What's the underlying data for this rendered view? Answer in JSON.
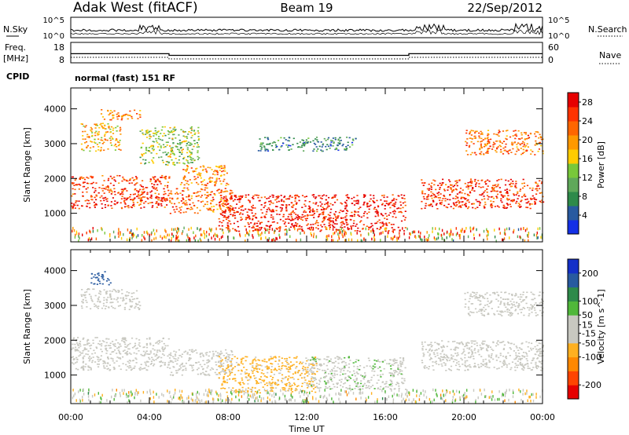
{
  "header": {
    "station": "Adak West (fitACF)",
    "beam": "Beam 19",
    "date": "22/Sep/2012"
  },
  "sky_panel": {
    "left_label": "N.Sky",
    "left_ticks": [
      "10^5",
      "10^0"
    ],
    "right_label": "N.Search",
    "right_ticks": [
      "10^5",
      "10^0"
    ]
  },
  "freq_panel": {
    "left_label_1": "Freq.",
    "left_label_2": "[MHz]",
    "left_ticks": [
      "18",
      "8"
    ],
    "right_label": "Nave",
    "right_ticks": [
      "60",
      "0"
    ]
  },
  "cpid": {
    "label": "CPID",
    "value": "normal (fast) 151 RF"
  },
  "colors": {
    "power_scale": [
      "#1430e6",
      "#285aa0",
      "#2e8a4a",
      "#5fa85a",
      "#78c83a",
      "#ffcc00",
      "#ff9900",
      "#ff6600",
      "#ff3300",
      "#e60000"
    ],
    "velocity_scale": [
      "#e60000",
      "#ff4400",
      "#ff8800",
      "#ffb020",
      "#c8c8c0",
      "#c8c8c0",
      "#50b83a",
      "#2e8a4a",
      "#285aa0",
      "#1430c8"
    ]
  },
  "chart_data": [
    {
      "type": "heatmap",
      "panel": "power",
      "x_ticks": [
        "00:00",
        "04:00",
        "08:00",
        "12:00",
        "16:00",
        "20:00",
        "00:00"
      ],
      "xlim_hours": [
        0,
        24
      ],
      "ylabel": "Slant Range [km]",
      "y_ticks": [
        1000,
        2000,
        3000,
        4000
      ],
      "ylim_km": [
        180,
        4600
      ],
      "colorbar_label": "Power [dB]",
      "colorbar_ticks": [
        4,
        8,
        12,
        16,
        20,
        24,
        28
      ],
      "colorbar_range": [
        0,
        30
      ],
      "regions": [
        {
          "t0": 0.0,
          "t1": 5.0,
          "r0": 1150,
          "r1": 2100,
          "level": 0.85
        },
        {
          "t0": 5.0,
          "t1": 8.2,
          "r0": 1000,
          "r1": 1750,
          "level": 0.75
        },
        {
          "t0": 5.5,
          "t1": 8.0,
          "r0": 1800,
          "r1": 2400,
          "level": 0.7
        },
        {
          "t0": 7.5,
          "t1": 17.0,
          "r0": 500,
          "r1": 1550,
          "level": 0.9
        },
        {
          "t0": 0.5,
          "t1": 2.5,
          "r0": 2800,
          "r1": 3600,
          "level": 0.6
        },
        {
          "t0": 1.5,
          "t1": 3.5,
          "r0": 3700,
          "r1": 4000,
          "level": 0.7
        },
        {
          "t0": 17.8,
          "t1": 24.0,
          "r0": 1150,
          "r1": 2000,
          "level": 0.85
        },
        {
          "t0": 20.0,
          "t1": 24.0,
          "r0": 2700,
          "r1": 3400,
          "level": 0.75
        },
        {
          "t0": 9.5,
          "t1": 14.5,
          "r0": 2800,
          "r1": 3200,
          "level": 0.25
        },
        {
          "t0": 3.5,
          "t1": 6.5,
          "r0": 2400,
          "r1": 3500,
          "level": 0.45
        }
      ]
    },
    {
      "type": "heatmap",
      "panel": "velocity",
      "x_ticks": [
        "00:00",
        "04:00",
        "08:00",
        "12:00",
        "16:00",
        "20:00",
        "00:00"
      ],
      "xlim_hours": [
        0,
        24
      ],
      "xlabel": "Time UT",
      "ylabel": "Slant Range [km]",
      "y_ticks": [
        1000,
        2000,
        3000,
        4000
      ],
      "ylim_km": [
        180,
        4600
      ],
      "colorbar_label": "Velocity [m s^-1]",
      "colorbar_ticks": [
        200,
        100,
        50,
        15,
        -15,
        -50,
        -100,
        -200
      ],
      "colorbar_range": [
        -250,
        250
      ],
      "regions": [
        {
          "t0": 0.0,
          "t1": 5.0,
          "r0": 1150,
          "r1": 2100,
          "velocity": 0
        },
        {
          "t0": 5.0,
          "t1": 8.2,
          "r0": 1000,
          "r1": 1750,
          "velocity": 0
        },
        {
          "t0": 7.5,
          "t1": 12.5,
          "r0": 500,
          "r1": 1550,
          "velocity": -60
        },
        {
          "t0": 12.0,
          "t1": 17.0,
          "r0": 600,
          "r1": 1550,
          "velocity": 40
        },
        {
          "t0": 0.5,
          "t1": 3.5,
          "r0": 2900,
          "r1": 3500,
          "velocity": 0
        },
        {
          "t0": 17.8,
          "t1": 24.0,
          "r0": 1150,
          "r1": 2000,
          "velocity": 0
        },
        {
          "t0": 20.0,
          "t1": 24.0,
          "r0": 2700,
          "r1": 3400,
          "velocity": 0
        },
        {
          "t0": 1.0,
          "t1": 2.0,
          "r0": 3600,
          "r1": 4000,
          "velocity": 180
        }
      ]
    }
  ]
}
